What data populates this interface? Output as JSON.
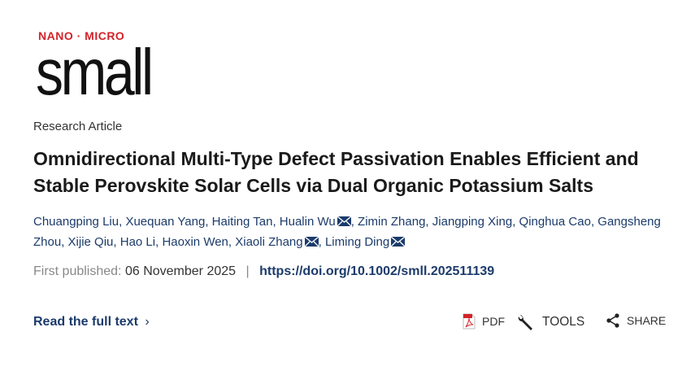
{
  "journal": {
    "logo_tag": "NANO · MICRO",
    "logo_word": "small"
  },
  "article": {
    "type": "Research Article",
    "title": "Omnidirectional Multi-Type Defect Passivation Enables Efficient and Stable Perovskite Solar Cells via Dual Organic Potassium Salts",
    "authors": [
      {
        "name": "Chuangping Liu",
        "corresponding": false
      },
      {
        "name": "Xuequan Yang",
        "corresponding": false
      },
      {
        "name": "Haiting Tan",
        "corresponding": false
      },
      {
        "name": "Hualin Wu",
        "corresponding": true
      },
      {
        "name": "Zimin Zhang",
        "corresponding": false
      },
      {
        "name": "Jiangping Xing",
        "corresponding": false
      },
      {
        "name": "Qinghua Cao",
        "corresponding": false
      },
      {
        "name": "Gangsheng Zhou",
        "corresponding": false
      },
      {
        "name": "Xijie Qiu",
        "corresponding": false
      },
      {
        "name": "Hao Li",
        "corresponding": false
      },
      {
        "name": "Haoxin Wen",
        "corresponding": false
      },
      {
        "name": "Xiaoli Zhang",
        "corresponding": true
      },
      {
        "name": "Liming Ding",
        "corresponding": true
      }
    ],
    "published_label": "First published:",
    "published_date": "06 November 2025",
    "separator": "|",
    "doi": "https://doi.org/10.1002/smll.202511139"
  },
  "actions": {
    "read_full_text": "Read the full text",
    "pdf": "PDF",
    "tools": "TOOLS",
    "share": "SHARE"
  },
  "colors": {
    "link": "#1c3b6b",
    "logo_red": "#d2232a"
  }
}
